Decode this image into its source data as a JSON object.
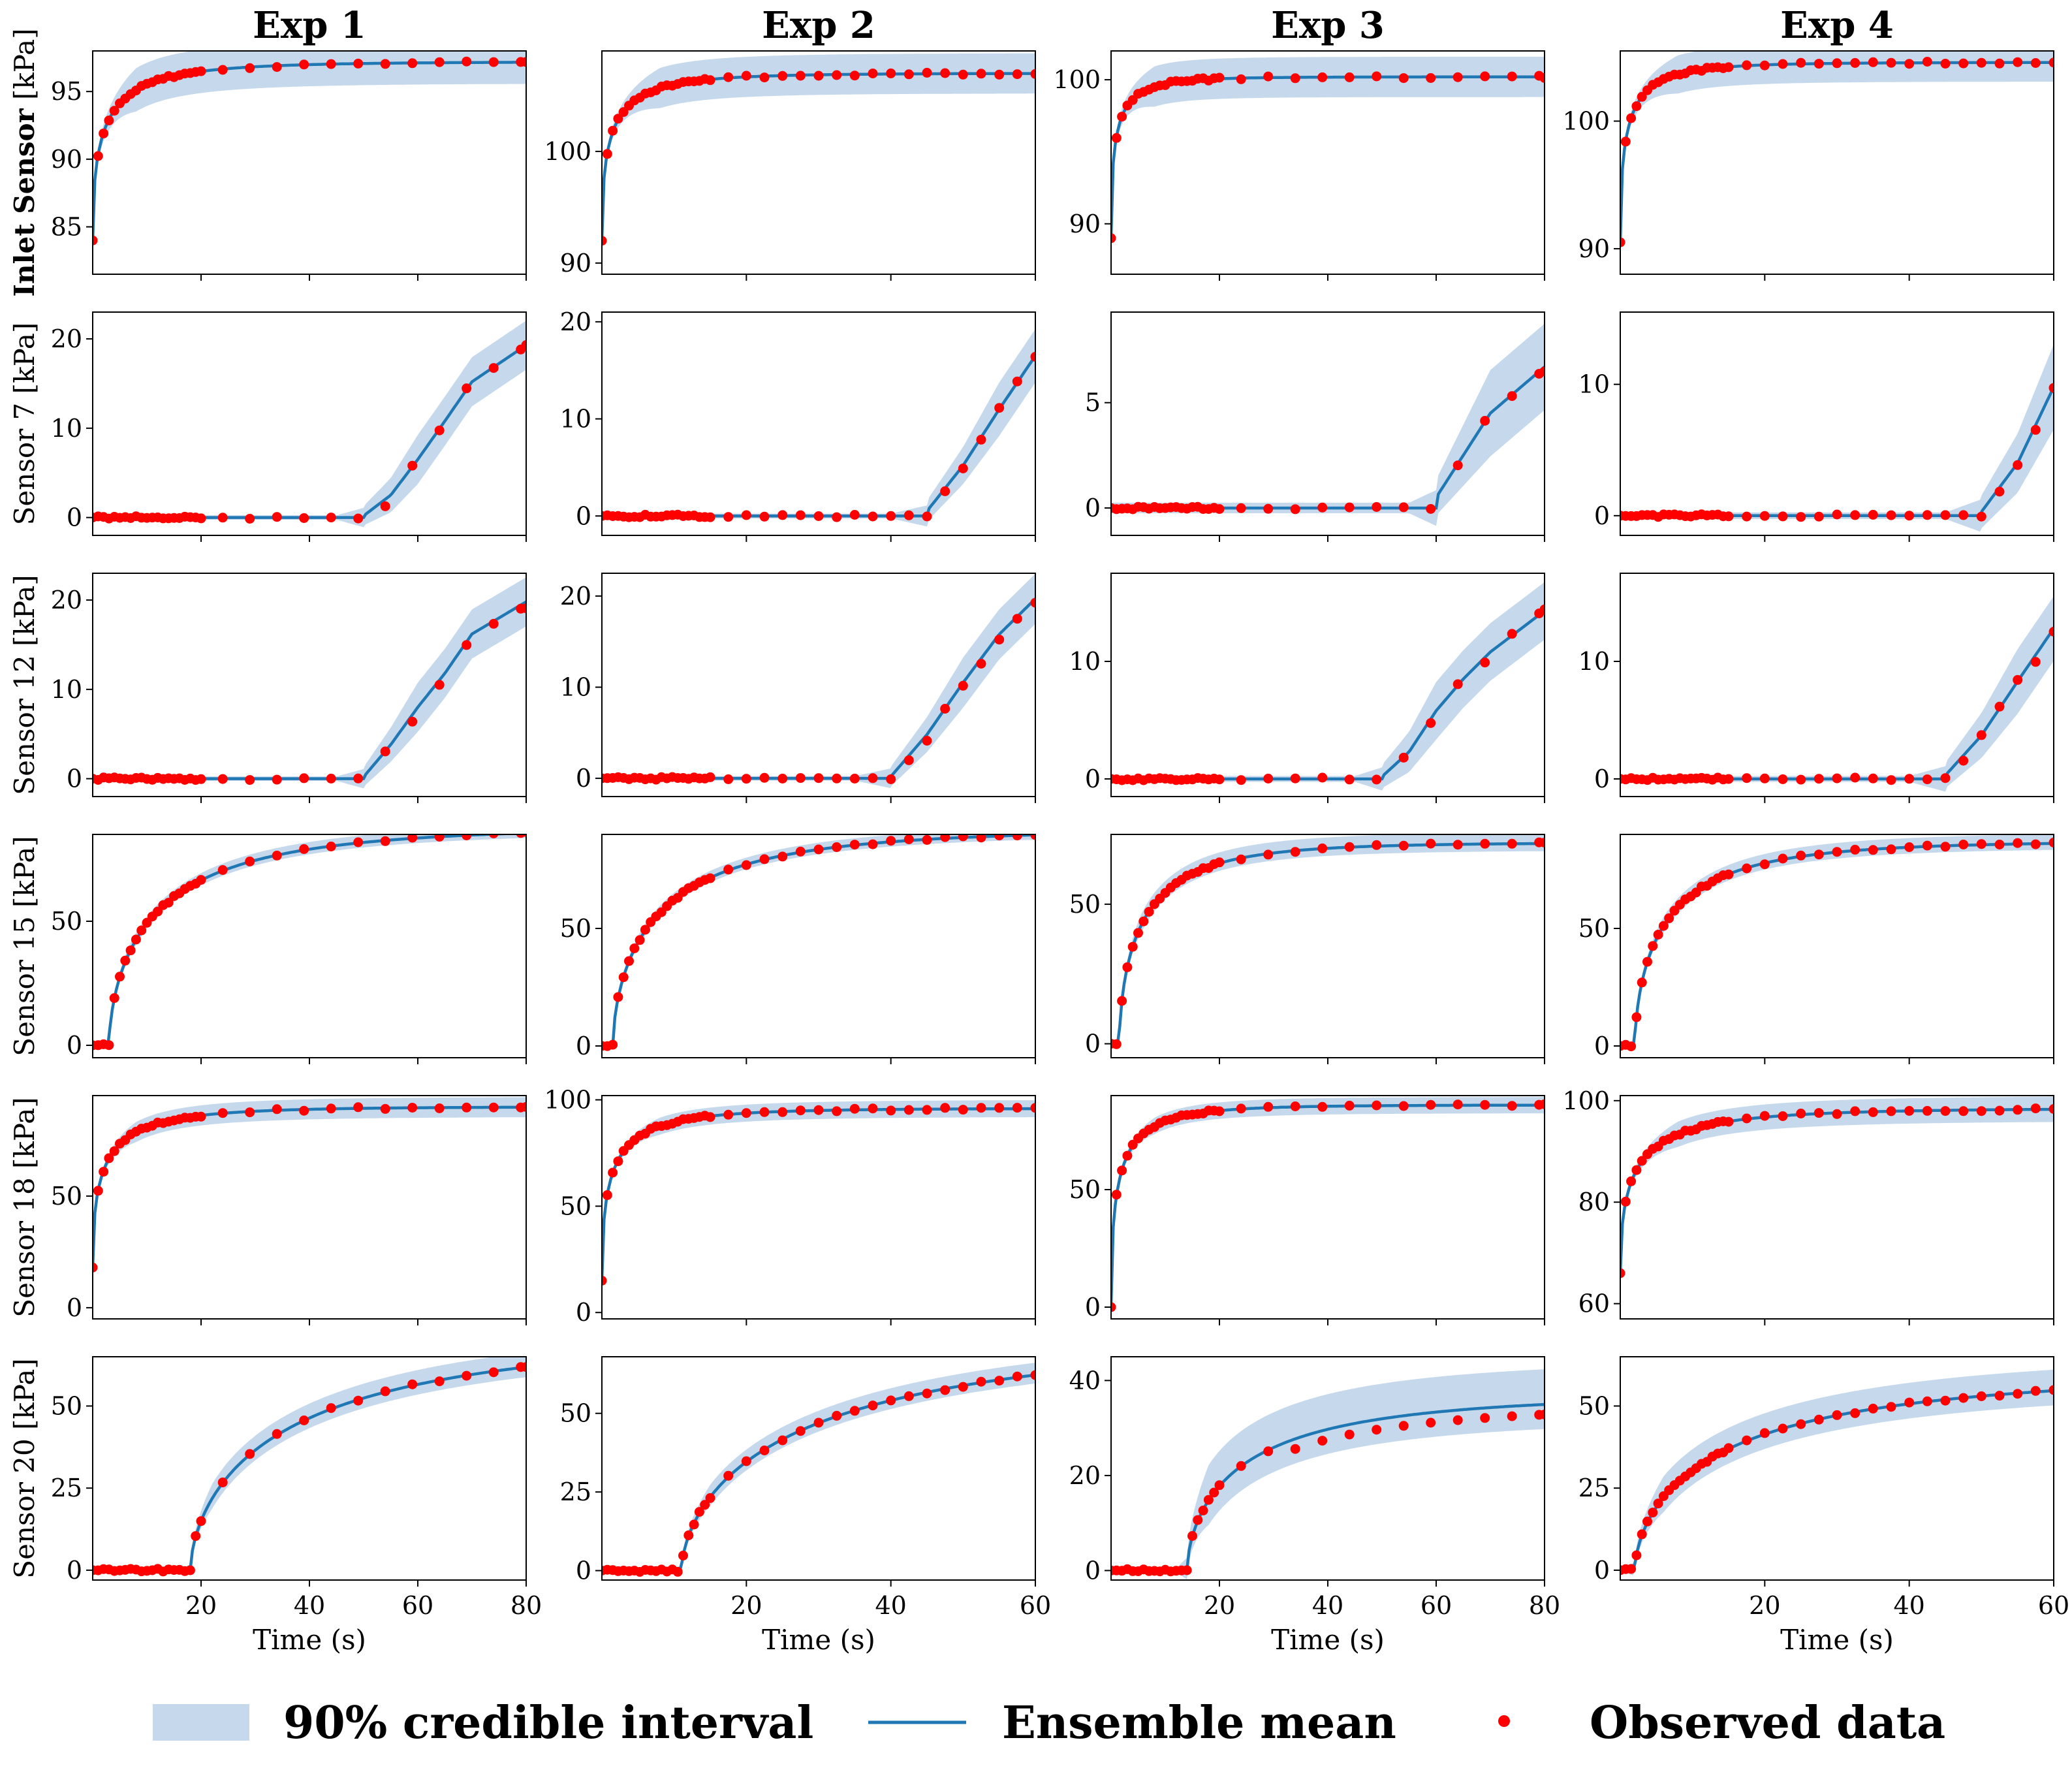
{
  "colors": {
    "band": "#c6d9ec",
    "mean": "#1f77b4",
    "observed": "#ff0000",
    "axis": "#000000"
  },
  "legend": {
    "band_label": "90% credible interval",
    "mean_label": "Ensemble mean",
    "observed_label": "Observed data"
  },
  "chart_data": {
    "type": "line",
    "title": "",
    "columns": [
      "Exp 1",
      "Exp 2",
      "Exp 3",
      "Exp 4"
    ],
    "rows": [
      {
        "label_bold": "Inlet Sensor",
        "label_unit": "[kPa]"
      },
      {
        "label": "Sensor 7",
        "label_unit": "[kPa]"
      },
      {
        "label": "Sensor 12",
        "label_unit": "[kPa]"
      },
      {
        "label": "Sensor 15",
        "label_unit": "[kPa]"
      },
      {
        "label": "Sensor 18",
        "label_unit": "[kPa]"
      },
      {
        "label": "Sensor 20",
        "label_unit": "[kPa]"
      }
    ],
    "xlabel": "Time (s)",
    "xlims": [
      [
        0,
        80
      ],
      [
        0,
        60
      ],
      [
        0,
        80
      ],
      [
        0,
        60
      ]
    ],
    "xticks": [
      [
        20,
        40,
        60,
        80
      ],
      [
        20,
        40,
        60
      ],
      [
        20,
        40,
        60,
        80
      ],
      [
        20,
        40,
        60
      ]
    ],
    "panels": [
      [
        {
          "sensor": "Inlet Sensor",
          "exp": "Exp 1",
          "ylim": [
            81.5,
            98
          ],
          "yticks": [
            85,
            90,
            95
          ],
          "model": "rise",
          "y0": 84,
          "yinf": 97.2,
          "tau": 6,
          "bw": 1.6,
          "bw0": 0.3,
          "tmax": 80
        },
        {
          "sensor": "Inlet Sensor",
          "exp": "Exp 2",
          "ylim": [
            89,
            109
          ],
          "yticks": [
            90,
            100
          ],
          "model": "rise",
          "y0": 92,
          "yinf": 107,
          "tau": 3.5,
          "bw": 1.8,
          "bw0": 0.3,
          "tmax": 60
        },
        {
          "sensor": "Inlet Sensor",
          "exp": "Exp 3",
          "ylim": [
            86.5,
            102
          ],
          "yticks": [
            90,
            100
          ],
          "model": "rise",
          "y0": 89,
          "yinf": 100.2,
          "tau": 2.6,
          "bw": 1.4,
          "bw0": 0.3,
          "tmax": 80
        },
        {
          "sensor": "Inlet Sensor",
          "exp": "Exp 4",
          "ylim": [
            88,
            105.5
          ],
          "yticks": [
            90,
            100
          ],
          "model": "rise",
          "y0": 90.5,
          "yinf": 104.6,
          "tau": 2.8,
          "bw": 1.5,
          "bw0": 0.3,
          "tmax": 60
        }
      ],
      [
        {
          "sensor": "Sensor 7",
          "exp": "Exp 1",
          "ylim": [
            -2,
            23
          ],
          "yticks": [
            0,
            10,
            20
          ],
          "model": "ramp",
          "ton": 50,
          "pts": [
            [
              50,
              0.2
            ],
            [
              55,
              2.5
            ],
            [
              60,
              6.5
            ],
            [
              65,
              10.8
            ],
            [
              70,
              15.2
            ],
            [
              80,
              19.3
            ]
          ],
          "bw": 2.5,
          "tmax": 80
        },
        {
          "sensor": "Sensor 7",
          "exp": "Exp 2",
          "ylim": [
            -2,
            21
          ],
          "yticks": [
            0,
            10,
            20
          ],
          "model": "ramp",
          "ton": 45,
          "pts": [
            [
              45,
              0.5
            ],
            [
              50,
              5.2
            ],
            [
              55,
              11.0
            ],
            [
              60,
              16.5
            ]
          ],
          "bw": 2.5,
          "tmax": 60
        },
        {
          "sensor": "Sensor 7",
          "exp": "Exp 3",
          "ylim": [
            -1.3,
            9.3
          ],
          "yticks": [
            0,
            5
          ],
          "model": "ramp",
          "ton": 60,
          "pts": [
            [
              60,
              0.5
            ],
            [
              65,
              2.5
            ],
            [
              70,
              4.5
            ],
            [
              80,
              6.7
            ]
          ],
          "bw": 1.8,
          "tmax": 80
        },
        {
          "sensor": "Sensor 7",
          "exp": "Exp 4",
          "ylim": [
            -1.5,
            15.5
          ],
          "yticks": [
            0,
            10
          ],
          "model": "ramp",
          "ton": 50,
          "pts": [
            [
              50,
              0.3
            ],
            [
              55,
              4.0
            ],
            [
              60,
              9.8
            ]
          ],
          "bw": 3.0,
          "tmax": 60
        }
      ],
      [
        {
          "sensor": "Sensor 12",
          "exp": "Exp 1",
          "ylim": [
            -2,
            23
          ],
          "yticks": [
            0,
            10,
            20
          ],
          "model": "ramp",
          "ton": 50,
          "pts": [
            [
              50,
              0.2
            ],
            [
              55,
              3.8
            ],
            [
              60,
              8.0
            ],
            [
              65,
              11.8
            ],
            [
              70,
              16.2
            ],
            [
              80,
              19.8
            ]
          ],
          "bw": 2.5,
          "tmax": 80
        },
        {
          "sensor": "Sensor 12",
          "exp": "Exp 2",
          "ylim": [
            -2,
            22.5
          ],
          "yticks": [
            0,
            10,
            20
          ],
          "model": "ramp",
          "ton": 40,
          "pts": [
            [
              40,
              0.2
            ],
            [
              45,
              4.8
            ],
            [
              50,
              10.5
            ],
            [
              55,
              15.8
            ],
            [
              60,
              19.7
            ]
          ],
          "bw": 2.5,
          "tmax": 60
        },
        {
          "sensor": "Sensor 12",
          "exp": "Exp 3",
          "ylim": [
            -1.5,
            17.5
          ],
          "yticks": [
            0,
            10
          ],
          "model": "ramp",
          "ton": 50,
          "pts": [
            [
              50,
              0.2
            ],
            [
              55,
              2.3
            ],
            [
              60,
              5.8
            ],
            [
              65,
              8.5
            ],
            [
              70,
              10.8
            ],
            [
              80,
              14.3
            ]
          ],
          "bw": 2.2,
          "tmax": 80
        },
        {
          "sensor": "Sensor 12",
          "exp": "Exp 4",
          "ylim": [
            -1.5,
            17.5
          ],
          "yticks": [
            0,
            10
          ],
          "model": "ramp",
          "ton": 45,
          "pts": [
            [
              45,
              0.3
            ],
            [
              50,
              3.7
            ],
            [
              55,
              8.3
            ],
            [
              60,
              12.8
            ]
          ],
          "bw": 2.5,
          "tmax": 60
        }
      ],
      [
        {
          "sensor": "Sensor 15",
          "exp": "Exp 1",
          "ylim": [
            -5,
            85
          ],
          "yticks": [
            0,
            50
          ],
          "model": "rise_delay",
          "ton": 3,
          "y0": 0,
          "yinf": 88,
          "tau": 14,
          "bw": 2.5,
          "tmax": 80
        },
        {
          "sensor": "Sensor 15",
          "exp": "Exp 2",
          "ylim": [
            -5,
            90
          ],
          "yticks": [
            0,
            50
          ],
          "model": "rise_delay",
          "ton": 1.5,
          "y0": 0,
          "yinf": 92,
          "tau": 10,
          "bw": 2.5,
          "tmax": 60
        },
        {
          "sensor": "Sensor 15",
          "exp": "Exp 3",
          "ylim": [
            -5,
            75
          ],
          "yticks": [
            0,
            50
          ],
          "model": "rise_delay",
          "ton": 1.5,
          "y0": 0,
          "yinf": 72,
          "tau": 7,
          "bw": 3.5,
          "tmax": 80
        },
        {
          "sensor": "Sensor 15",
          "exp": "Exp 4",
          "ylim": [
            -5,
            90
          ],
          "yticks": [
            0,
            50
          ],
          "model": "rise_delay",
          "ton": 2,
          "y0": 0,
          "yinf": 87,
          "tau": 7,
          "bw": 3.5,
          "tmax": 60
        }
      ],
      [
        {
          "sensor": "Sensor 18",
          "exp": "Exp 1",
          "ylim": [
            -5,
            95
          ],
          "yticks": [
            0,
            50
          ],
          "model": "rise",
          "y0": 18,
          "yinf": 90,
          "tau": 6,
          "bw": 4.5,
          "bw0": 1,
          "tmax": 80
        },
        {
          "sensor": "Sensor 18",
          "exp": "Exp 2",
          "ylim": [
            -3,
            102
          ],
          "yticks": [
            0,
            50,
            100
          ],
          "model": "rise",
          "y0": 15,
          "yinf": 96,
          "tau": 4,
          "bw": 4,
          "bw0": 1,
          "tmax": 60
        },
        {
          "sensor": "Sensor 18",
          "exp": "Exp 3",
          "ylim": [
            -5,
            90
          ],
          "yticks": [
            0,
            50
          ],
          "model": "rise",
          "y0": 0,
          "yinf": 86,
          "tau": 4,
          "bw": 3.5,
          "bw0": 1,
          "tmax": 80
        },
        {
          "sensor": "Sensor 18",
          "exp": "Exp 4",
          "ylim": [
            57,
            101
          ],
          "yticks": [
            60,
            80,
            100
          ],
          "model": "rise",
          "y0": 66,
          "yinf": 98.5,
          "tau": 6,
          "bw": 2.5,
          "bw0": 0.5,
          "tmax": 60
        }
      ],
      [
        {
          "sensor": "Sensor 20",
          "exp": "Exp 1",
          "ylim": [
            -3,
            65
          ],
          "yticks": [
            0,
            25,
            50
          ],
          "model": "rise_delay",
          "ton": 18,
          "y0": 0,
          "yinf": 72,
          "tau": 30,
          "bw": 4,
          "tmax": 80
        },
        {
          "sensor": "Sensor 20",
          "exp": "Exp 2",
          "ylim": [
            -3,
            68
          ],
          "yticks": [
            0,
            25,
            50
          ],
          "model": "rise_delay",
          "ton": 11,
          "y0": 0,
          "yinf": 75,
          "tau": 28,
          "bw": 3.5,
          "tmax": 60
        },
        {
          "sensor": "Sensor 20",
          "exp": "Exp 3",
          "ylim": [
            -2,
            45
          ],
          "yticks": [
            0,
            20,
            40
          ],
          "model": "rise_delay",
          "ton": 14,
          "y0": 0,
          "yinf": 37,
          "tau": 17,
          "bw": 7,
          "tmax": 80
        },
        {
          "sensor": "Sensor 20",
          "exp": "Exp 4",
          "ylim": [
            -3,
            65
          ],
          "yticks": [
            0,
            25,
            50
          ],
          "model": "rise_delay",
          "ton": 2,
          "y0": 0,
          "yinf": 60,
          "tau": 20,
          "bw": 6,
          "tmax": 60
        }
      ]
    ]
  }
}
